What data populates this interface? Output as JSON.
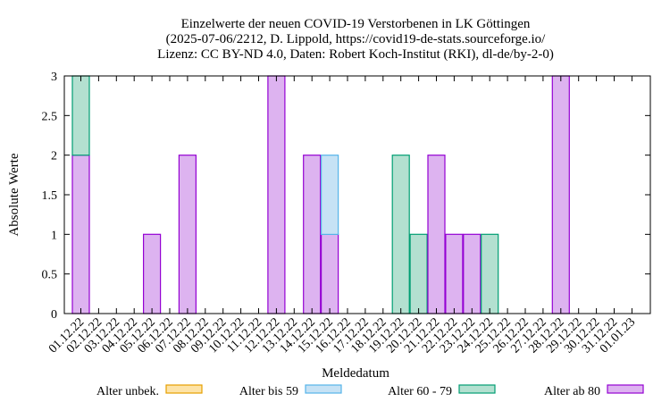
{
  "chart_data": {
    "type": "bar",
    "stacked": true,
    "title_lines": [
      "Einzelwerte der neuen COVID-19 Verstorbenen in LK Göttingen",
      "(2025-07-06/2212, D. Lippold, https://covid19-de-stats.sourceforge.io/",
      "Lizenz: CC BY-ND 4.0, Daten: Robert Koch-Institut (RKI), dl-de/by-2-0)"
    ],
    "xlabel": "Meldedatum",
    "ylabel": "Absolute Werte",
    "ylim": [
      0,
      3
    ],
    "yticks": [
      "0",
      "0.5",
      "1",
      "1.5",
      "2",
      "2.5",
      "3"
    ],
    "categories": [
      "01.12.22",
      "02.12.22",
      "03.12.22",
      "04.12.22",
      "05.12.22",
      "06.12.22",
      "07.12.22",
      "08.12.22",
      "09.12.22",
      "10.12.22",
      "11.12.22",
      "12.12.22",
      "13.12.22",
      "14.12.22",
      "15.12.22",
      "16.12.22",
      "17.12.22",
      "18.12.22",
      "19.12.22",
      "20.12.22",
      "21.12.22",
      "22.12.22",
      "23.12.22",
      "24.12.22",
      "25.12.22",
      "26.12.22",
      "27.12.22",
      "28.12.22",
      "29.12.22",
      "30.12.22",
      "31.12.22",
      "01.01.23"
    ],
    "series": [
      {
        "name": "Alter unbek.",
        "fill": "#fde3a7",
        "stroke": "#e69f00",
        "values": [
          0,
          0,
          0,
          0,
          0,
          0,
          0,
          0,
          0,
          0,
          0,
          0,
          0,
          0,
          0,
          0,
          0,
          0,
          0,
          0,
          0,
          0,
          0,
          0,
          0,
          0,
          0,
          0,
          0,
          0,
          0,
          0
        ]
      },
      {
        "name": "Alter bis 59",
        "fill": "#c6e2f5",
        "stroke": "#56b4e9",
        "values": [
          0,
          0,
          0,
          0,
          0,
          0,
          0,
          0,
          0,
          0,
          0,
          0,
          0,
          0,
          1,
          0,
          0,
          0,
          0,
          0,
          0,
          0,
          0,
          0,
          0,
          0,
          0,
          0,
          0,
          0,
          0,
          0
        ]
      },
      {
        "name": "Alter 60 - 79",
        "fill": "#b3e0d0",
        "stroke": "#009e73",
        "values": [
          1,
          0,
          0,
          0,
          0,
          0,
          0,
          0,
          0,
          0,
          0,
          0,
          0,
          0,
          0,
          0,
          0,
          0,
          2,
          1,
          0,
          0,
          0,
          1,
          0,
          0,
          0,
          0,
          0,
          0,
          0,
          0
        ]
      },
      {
        "name": "Alter ab 80",
        "fill": "#ddb3f0",
        "stroke": "#9400d3",
        "values": [
          2,
          0,
          0,
          0,
          1,
          0,
          2,
          0,
          0,
          0,
          0,
          3,
          0,
          2,
          1,
          0,
          0,
          0,
          0,
          0,
          2,
          1,
          1,
          0,
          0,
          0,
          0,
          3,
          0,
          0,
          0,
          0
        ]
      }
    ],
    "stack_order": [
      "Alter ab 80",
      "Alter bis 59",
      "Alter 60 - 79",
      "Alter unbek."
    ],
    "grid": false,
    "legend_position": "bottom"
  }
}
